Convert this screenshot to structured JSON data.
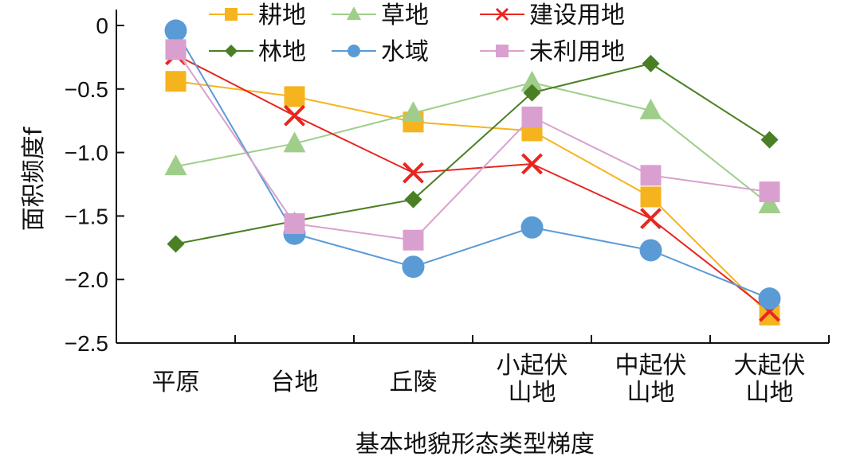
{
  "chart_data": {
    "type": "line",
    "categories": [
      [
        "平原"
      ],
      [
        "台地"
      ],
      [
        "丘陵"
      ],
      [
        "小起伏",
        "山地"
      ],
      [
        "中起伏",
        "山地"
      ],
      [
        "大起伏",
        "山地"
      ]
    ],
    "xlabel": "基本地貌形态类型梯度",
    "ylabel": "面积频度f",
    "ylim": [
      -2.5,
      0
    ],
    "yticks": [
      0,
      -0.5,
      -1.0,
      -1.5,
      -2.0,
      -2.5
    ],
    "ytick_labels": [
      "0",
      "-0.5",
      "-1.0",
      "-1.5",
      "-2.0",
      "-2.5"
    ],
    "grid": false,
    "legend_position": "top",
    "series": [
      {
        "name": "耕地",
        "color": "#f5b41e",
        "marker": "square",
        "values": [
          -0.44,
          -0.56,
          -0.76,
          -0.83,
          -1.35,
          -2.28
        ]
      },
      {
        "name": "草地",
        "color": "#9fce8a",
        "marker": "triangle",
        "values": [
          -1.11,
          -0.93,
          -0.69,
          -0.45,
          -0.67,
          -1.41
        ]
      },
      {
        "name": "建设用地",
        "color": "#e8261f",
        "marker": "x",
        "values": [
          -0.23,
          -0.71,
          -1.16,
          -1.09,
          -1.52,
          -2.25
        ]
      },
      {
        "name": "林地",
        "color": "#4a7f24",
        "marker": "diamond",
        "values": [
          -1.72,
          -1.54,
          -1.37,
          -0.53,
          -0.3,
          -0.9
        ]
      },
      {
        "name": "水域",
        "color": "#5b9bd5",
        "marker": "circle",
        "values": [
          -0.04,
          -1.64,
          -1.9,
          -1.59,
          -1.77,
          -2.15
        ]
      },
      {
        "name": "未利用地",
        "color": "#d9a0cf",
        "marker": "square",
        "values": [
          -0.19,
          -1.56,
          -1.69,
          -0.72,
          -1.18,
          -1.31
        ]
      }
    ]
  }
}
